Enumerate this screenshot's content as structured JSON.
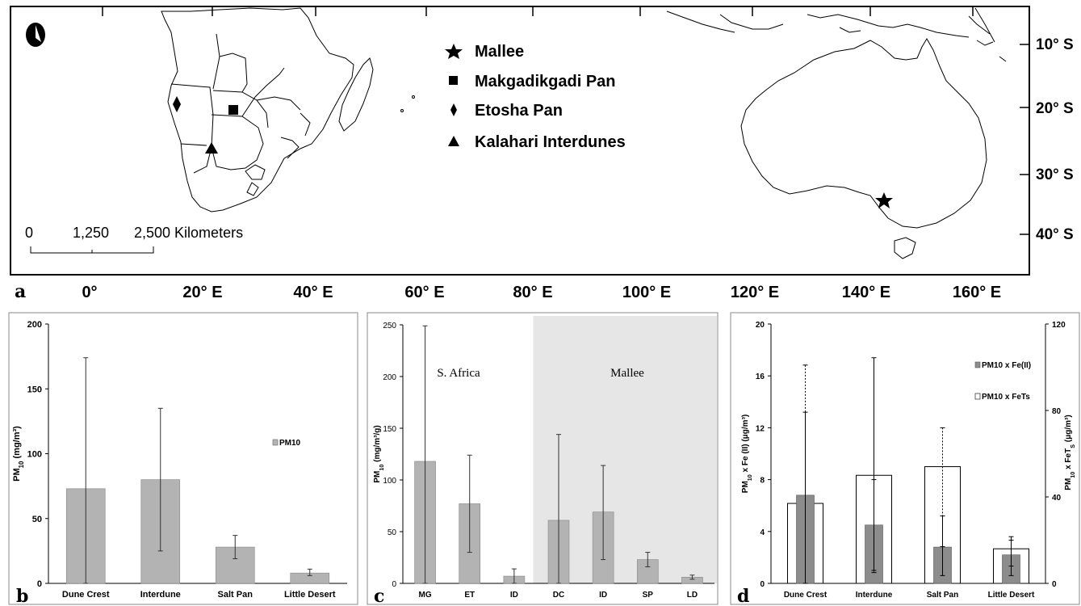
{
  "map": {
    "panel_letter": "a",
    "legend": [
      {
        "symbol": "star",
        "label": "Mallee"
      },
      {
        "symbol": "square",
        "label": "Makgadikgadi Pan"
      },
      {
        "symbol": "diamond",
        "label": "Etosha Pan"
      },
      {
        "symbol": "triangle",
        "label": "Kalahari Interdunes"
      }
    ],
    "lat_labels": [
      "10° S",
      "20° S",
      "30° S",
      "40° S"
    ],
    "lon_labels": [
      "0°",
      "20° E",
      "40° E",
      "60° E",
      "80° E",
      "100° E",
      "120° E",
      "140° E",
      "160° E"
    ],
    "scale_ticks": [
      "0",
      "1,250",
      "2,500 Kilometers"
    ],
    "north_icon": "north-arrow-icon"
  },
  "chart_data": [
    {
      "panel": "b",
      "type": "bar",
      "categories": [
        "Dune Crest",
        "Interdune",
        "Salt Pan",
        "Little Desert"
      ],
      "series": [
        {
          "name": "PM10",
          "values": [
            73,
            80,
            28,
            8
          ],
          "error_high": [
            174,
            135,
            37,
            11
          ],
          "error_low": [
            0,
            25,
            19,
            6
          ]
        }
      ],
      "ylim": [
        0,
        200
      ],
      "yticks": [
        "0",
        "50",
        "100",
        "150",
        "200"
      ],
      "ylabel": "PM",
      "ylabel_sub": "10",
      "ylabel_tail": " (mg/m³)",
      "legend": "PM10",
      "bar_color": "#b3b3b3"
    },
    {
      "panel": "c",
      "type": "bar",
      "categories": [
        "MG",
        "ET",
        "ID",
        "DC",
        "ID",
        "SP",
        "LD"
      ],
      "series": [
        {
          "values": [
            118,
            77,
            7,
            61,
            69,
            23,
            6
          ],
          "error_high": [
            249,
            124,
            14,
            144,
            114,
            30,
            8
          ],
          "error_low": [
            0,
            30,
            0,
            0,
            23,
            16,
            4
          ]
        }
      ],
      "ylim": [
        0,
        250
      ],
      "yticks": [
        "0",
        "50",
        "100",
        "150",
        "200",
        "250"
      ],
      "ylabel": "PM",
      "ylabel_sub": "10",
      "ylabel_tail": " (mg/m³/g)",
      "region_labels": [
        "S. Africa",
        "Mallee"
      ],
      "shaded_from_category": 3,
      "bar_color": "#b3b3b3",
      "shade_color": "#e6e6e6"
    },
    {
      "panel": "d",
      "type": "bar",
      "categories": [
        "Dune Crest",
        "Interdune",
        "Salt Pan",
        "Little Desert"
      ],
      "series": [
        {
          "name": "PM10 x Fe(II)",
          "axis": "left",
          "values": [
            6.8,
            4.5,
            2.8,
            2.2
          ],
          "error_high": [
            13.2,
            17.4,
            5.2,
            3.6
          ],
          "error_low": [
            0,
            1.0,
            0.6,
            0.6
          ]
        },
        {
          "name": "PM10 x FeTs",
          "axis": "right",
          "values": [
            37,
            50,
            54,
            16
          ],
          "error_high": [
            101,
            48,
            72,
            20
          ],
          "error_low": [
            0,
            5,
            17,
            8
          ]
        }
      ],
      "ylim_left": [
        0,
        20
      ],
      "yticks_left": [
        "0",
        "4",
        "8",
        "12",
        "16",
        "20"
      ],
      "ylim_right": [
        0,
        120
      ],
      "yticks_right": [
        "0",
        "40",
        "80",
        "120"
      ],
      "ylabel_left": "PM",
      "ylabel_left_sub": "10",
      "ylabel_left_tail": " x Fe (II) (μg/m³)",
      "ylabel_right": "PM",
      "ylabel_right_sub": "10",
      "ylabel_right_tail": " x FeT",
      "ylabel_right_sub2": "S",
      "ylabel_right_tail2": " (μg/m³)",
      "legend": [
        "PM10 x Fe(II)",
        "PM10 x FeTs"
      ]
    }
  ]
}
